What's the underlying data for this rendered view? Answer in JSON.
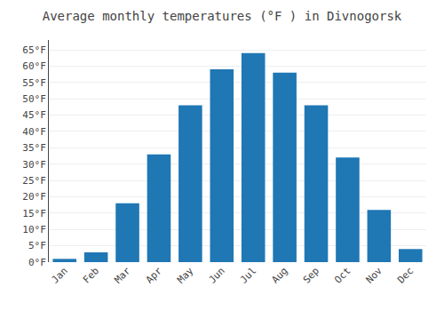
{
  "chart_data": {
    "type": "bar",
    "title": "Average monthly temperatures (°F ) in Divnogorsk",
    "categories": [
      "Jan",
      "Feb",
      "Mar",
      "Apr",
      "May",
      "Jun",
      "Jul",
      "Aug",
      "Sep",
      "Oct",
      "Nov",
      "Dec"
    ],
    "values": [
      1,
      3,
      18,
      33,
      48,
      59,
      64,
      58,
      48,
      32,
      16,
      4
    ],
    "ylim": [
      0,
      68
    ],
    "yticks": [
      {
        "value": 0,
        "label": "0°F"
      },
      {
        "value": 5,
        "label": "5°F"
      },
      {
        "value": 10,
        "label": "10°F"
      },
      {
        "value": 15,
        "label": "15°F"
      },
      {
        "value": 20,
        "label": "20°F"
      },
      {
        "value": 25,
        "label": "25°F"
      },
      {
        "value": 30,
        "label": "30°F"
      },
      {
        "value": 35,
        "label": "35°F"
      },
      {
        "value": 40,
        "label": "40°F"
      },
      {
        "value": 45,
        "label": "45°F"
      },
      {
        "value": 50,
        "label": "50°F"
      },
      {
        "value": 55,
        "label": "55°F"
      },
      {
        "value": 60,
        "label": "60°F"
      },
      {
        "value": 65,
        "label": "65°F"
      }
    ],
    "grid": true
  }
}
